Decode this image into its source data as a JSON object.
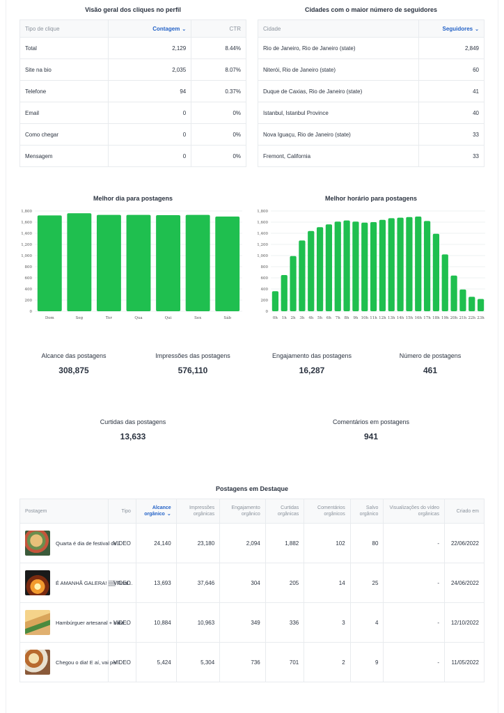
{
  "clicks": {
    "title": "Visão geral dos cliques no perfil",
    "headers": [
      "Tipo de clique",
      "Contagem",
      "CTR"
    ],
    "rows": [
      [
        "Total",
        "2,129",
        "8.44%"
      ],
      [
        "Site na bio",
        "2,035",
        "8.07%"
      ],
      [
        "Telefone",
        "94",
        "0.37%"
      ],
      [
        "Email",
        "0",
        "0%"
      ],
      [
        "Como chegar",
        "0",
        "0%"
      ],
      [
        "Mensagem",
        "0",
        "0%"
      ]
    ]
  },
  "cities": {
    "title": "Cidades com o maior número de seguidores",
    "headers": [
      "Cidade",
      "Seguidores"
    ],
    "rows": [
      [
        "Rio de Janeiro, Rio de Janeiro (state)",
        "2,849"
      ],
      [
        "Niterói, Rio de Janeiro (state)",
        "60"
      ],
      [
        "Duque de Caxias, Rio de Janeiro (state)",
        "41"
      ],
      [
        "Istanbul, Istanbul Province",
        "40"
      ],
      [
        "Nova Iguaçu, Rio de Janeiro (state)",
        "33"
      ],
      [
        "Fremont, California",
        "33"
      ]
    ]
  },
  "colors": {
    "bar": "#1fbf4f",
    "accent": "#2563c7",
    "grid": "#e8ebee"
  },
  "chart_data": [
    {
      "type": "bar",
      "title": "Melhor dia para postagens",
      "categories": [
        "Dom",
        "Seg",
        "Ter",
        "Qua",
        "Qui",
        "Sex",
        "Sáb"
      ],
      "values": [
        1720,
        1760,
        1730,
        1730,
        1725,
        1730,
        1700
      ],
      "yticks": [
        0,
        200,
        400,
        600,
        800,
        1000,
        1200,
        1400,
        1600,
        1800
      ],
      "ytick_labels": [
        "0",
        "200",
        "400",
        "600",
        "800",
        "1,000",
        "1,200",
        "1,400",
        "1,600",
        "1,800"
      ],
      "ylim": [
        0,
        1800
      ],
      "grid": true
    },
    {
      "type": "bar",
      "title": "Melhor horário para postagens",
      "categories": [
        "0h",
        "1h",
        "2h",
        "3h",
        "4h",
        "5h",
        "6h",
        "7h",
        "8h",
        "9h",
        "10h",
        "11h",
        "12h",
        "13h",
        "14h",
        "15h",
        "16h",
        "17h",
        "18h",
        "19h",
        "20h",
        "21h",
        "22h",
        "23h"
      ],
      "values": [
        360,
        650,
        990,
        1270,
        1440,
        1510,
        1560,
        1610,
        1630,
        1610,
        1590,
        1600,
        1640,
        1670,
        1680,
        1690,
        1700,
        1620,
        1390,
        1020,
        640,
        390,
        260,
        220
      ],
      "yticks": [
        0,
        200,
        400,
        600,
        800,
        1000,
        1200,
        1400,
        1600,
        1800
      ],
      "ytick_labels": [
        "0",
        "200",
        "400",
        "600",
        "800",
        "1,000",
        "1,200",
        "1,400",
        "1,600",
        "1,800"
      ],
      "ylim": [
        0,
        1800
      ],
      "grid": true
    }
  ],
  "kpis": [
    {
      "label": "Alcance das postagens",
      "value": "308,875"
    },
    {
      "label": "Impressões das postagens",
      "value": "576,110"
    },
    {
      "label": "Engajamento das postagens",
      "value": "16,287"
    },
    {
      "label": "Número de postagens",
      "value": "461"
    },
    {
      "label": "Curtidas das postagens",
      "value": "13,633"
    },
    {
      "label": "Comentários em postagens",
      "value": "941"
    }
  ],
  "posts": {
    "title": "Postagens em Destaque",
    "headers": [
      "Postagem",
      "Tipo",
      "Alcance orgânico",
      "Impressões orgânicas",
      "Engajamento orgânico",
      "Curtidas orgânicas",
      "Comentários orgânicos",
      "Salvo orgânico",
      "Visualizações do vídeo orgânicas",
      "Criado em"
    ],
    "rows": [
      {
        "caption": "Quarta é dia de festival de...",
        "thumb": "food-plate-thumb",
        "cells": [
          "VIDEO",
          "24,140",
          "23,180",
          "2,094",
          "1,882",
          "102",
          "80",
          "-",
          "22/06/2022"
        ]
      },
      {
        "caption": "É AMANHÃ GALERA! ▒▒ Final...",
        "thumb": "fire-grill-thumb",
        "cells": [
          "VIDEO",
          "13,693",
          "37,646",
          "304",
          "205",
          "14",
          "25",
          "-",
          "24/06/2022"
        ]
      },
      {
        "caption": "Hambúrguer artesanal + bata...",
        "thumb": "person-burger-thumb",
        "cells": [
          "VIDEO",
          "10,884",
          "10,963",
          "349",
          "336",
          "3",
          "4",
          "-",
          "12/10/2022"
        ]
      },
      {
        "caption": "Chegou o dia! E aí, vai per...",
        "thumb": "dishes-table-thumb",
        "cells": [
          "VIDEO",
          "5,424",
          "5,304",
          "736",
          "701",
          "2",
          "9",
          "-",
          "11/05/2022"
        ]
      }
    ]
  }
}
